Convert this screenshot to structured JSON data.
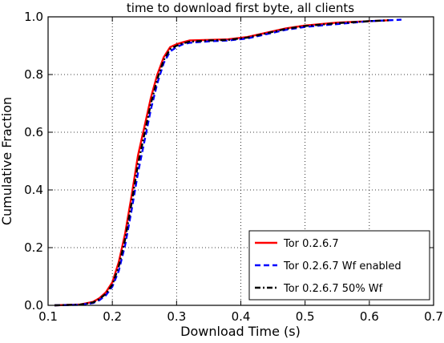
{
  "chart_data": {
    "type": "line",
    "title": "time to download first byte, all clients",
    "xlabel": "Download Time (s)",
    "ylabel": "Cumulative Fraction",
    "xlim": [
      0.1,
      0.7
    ],
    "ylim": [
      0.0,
      1.0
    ],
    "xticks": [
      "0.1",
      "0.2",
      "0.3",
      "0.4",
      "0.5",
      "0.6",
      "0.7"
    ],
    "yticks": [
      "0.0",
      "0.2",
      "0.4",
      "0.6",
      "0.8",
      "1.0"
    ],
    "grid": true,
    "legend_position": "bottom-right",
    "series": [
      {
        "name": "Tor 0.2.6.7",
        "color": "#ff0000",
        "style": "solid",
        "x": [
          0.11,
          0.15,
          0.17,
          0.18,
          0.19,
          0.2,
          0.21,
          0.22,
          0.23,
          0.24,
          0.25,
          0.26,
          0.27,
          0.28,
          0.29,
          0.3,
          0.31,
          0.32,
          0.35,
          0.38,
          0.41,
          0.44,
          0.47,
          0.5,
          0.55,
          0.6,
          0.63
        ],
        "y": [
          0.0,
          0.003,
          0.012,
          0.025,
          0.045,
          0.08,
          0.15,
          0.25,
          0.38,
          0.52,
          0.62,
          0.72,
          0.8,
          0.86,
          0.895,
          0.905,
          0.912,
          0.918,
          0.92,
          0.922,
          0.93,
          0.945,
          0.96,
          0.97,
          0.98,
          0.985,
          0.988
        ]
      },
      {
        "name": "Tor 0.2.6.7 Wf enabled",
        "color": "#0000ff",
        "style": "dashed",
        "x": [
          0.11,
          0.15,
          0.17,
          0.18,
          0.19,
          0.2,
          0.21,
          0.22,
          0.23,
          0.24,
          0.25,
          0.26,
          0.27,
          0.28,
          0.29,
          0.3,
          0.31,
          0.32,
          0.35,
          0.38,
          0.41,
          0.44,
          0.47,
          0.5,
          0.55,
          0.6,
          0.65
        ],
        "y": [
          0.0,
          0.002,
          0.008,
          0.018,
          0.035,
          0.065,
          0.12,
          0.21,
          0.33,
          0.46,
          0.57,
          0.68,
          0.77,
          0.84,
          0.88,
          0.895,
          0.905,
          0.91,
          0.915,
          0.918,
          0.925,
          0.94,
          0.955,
          0.965,
          0.975,
          0.985,
          0.99
        ]
      },
      {
        "name": "Tor 0.2.6.7 50% Wf",
        "color": "#000000",
        "style": "dashdot",
        "x": [
          0.11,
          0.15,
          0.17,
          0.18,
          0.19,
          0.2,
          0.21,
          0.22,
          0.23,
          0.24,
          0.25,
          0.26,
          0.27,
          0.28,
          0.29,
          0.3,
          0.31,
          0.32,
          0.35,
          0.38,
          0.41,
          0.44,
          0.47,
          0.5,
          0.55,
          0.6,
          0.63
        ],
        "y": [
          0.0,
          0.0025,
          0.01,
          0.022,
          0.04,
          0.072,
          0.135,
          0.23,
          0.355,
          0.49,
          0.595,
          0.7,
          0.785,
          0.85,
          0.888,
          0.9,
          0.908,
          0.914,
          0.918,
          0.92,
          0.928,
          0.943,
          0.958,
          0.968,
          0.978,
          0.985,
          0.988
        ]
      }
    ]
  }
}
